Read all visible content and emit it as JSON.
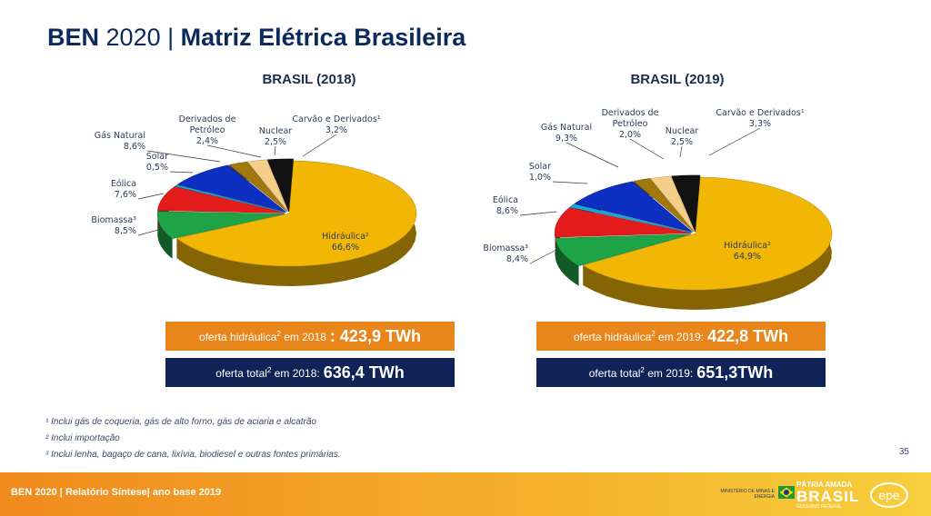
{
  "header": {
    "title_bold_1": "BEN",
    "title_thin": "2020 |",
    "title_bold_2": "Matriz Elétrica Brasileira"
  },
  "chart_data": [
    {
      "type": "pie",
      "title": "BRASIL (2018)",
      "slices": [
        {
          "name": "Hidráulica²",
          "value": 66.6,
          "label": "66,6%",
          "color": "#f2b705"
        },
        {
          "name": "Biomassa³",
          "value": 8.5,
          "label": "8,5%",
          "color": "#1fa347"
        },
        {
          "name": "Eólica",
          "value": 7.6,
          "label": "7,6%",
          "color": "#e31b1b"
        },
        {
          "name": "Solar",
          "value": 0.5,
          "label": "0,5%",
          "color": "#19a9d8"
        },
        {
          "name": "Gás Natural",
          "value": 8.6,
          "label": "8,6%",
          "color": "#0d2fc2"
        },
        {
          "name": "Derivados de Petróleo",
          "value": 2.4,
          "label": "2,4%",
          "color": "#a2780e"
        },
        {
          "name": "Nuclear",
          "value": 2.5,
          "label": "2,5%",
          "color": "#f5cf8a"
        },
        {
          "name": "Carvão e Derivados¹",
          "value": 3.2,
          "label": "3,2%",
          "color": "#111111"
        }
      ]
    },
    {
      "type": "pie",
      "title": "BRASIL (2019)",
      "slices": [
        {
          "name": "Hidráulica²",
          "value": 64.9,
          "label": "64,9%",
          "color": "#f2b705"
        },
        {
          "name": "Biomassa³",
          "value": 8.4,
          "label": "8,4%",
          "color": "#1fa347"
        },
        {
          "name": "Eólica",
          "value": 8.6,
          "label": "8,6%",
          "color": "#e31b1b"
        },
        {
          "name": "Solar",
          "value": 1.0,
          "label": "1,0%",
          "color": "#19a9d8"
        },
        {
          "name": "Gás Natural",
          "value": 9.3,
          "label": "9,3%",
          "color": "#0d2fc2"
        },
        {
          "name": "Derivados de Petróleo",
          "value": 2.0,
          "label": "2,0%",
          "color": "#a2780e"
        },
        {
          "name": "Nuclear",
          "value": 2.5,
          "label": "2,5%",
          "color": "#f5cf8a"
        },
        {
          "name": "Carvão e Derivados¹",
          "value": 3.3,
          "label": "3,3%",
          "color": "#111111"
        }
      ]
    }
  ],
  "boxes": {
    "left": {
      "hydro_text": "oferta hidráulica",
      "hydro_sup": "2",
      "hydro_year": "em 2018",
      "hydro_value": ": 423,9 TWh",
      "total_text": "oferta total",
      "total_sup": "2",
      "total_year": "em 2018:",
      "total_value": "636,4 TWh"
    },
    "right": {
      "hydro_text": "oferta hidráulica",
      "hydro_sup": "2",
      "hydro_year": "em 2019:",
      "hydro_value": "422,8 TWh",
      "total_text": "oferta total",
      "total_sup": "2",
      "total_year": "em 2019:",
      "total_value": "651,3TWh"
    }
  },
  "notes": [
    "¹ Inclui gás de coqueria, gás de alto forno, gás de aciaria e alcatrão",
    "² Inclui importação",
    "³ Inclui lenha, bagaço de cana, lixívia, biodiesel e outras fontes primárias."
  ],
  "page_number": "35",
  "footer": {
    "text": "BEN 2020 | Relatório Síntese| ano base 2019",
    "ministry": "MINISTÉRIO DE MINAS E ENERGIA",
    "brand_line1": "PÁTRIA AMADA",
    "brand_line2": "BRASIL",
    "brand_line3": "GOVERNO FEDERAL",
    "epe": "epe"
  }
}
